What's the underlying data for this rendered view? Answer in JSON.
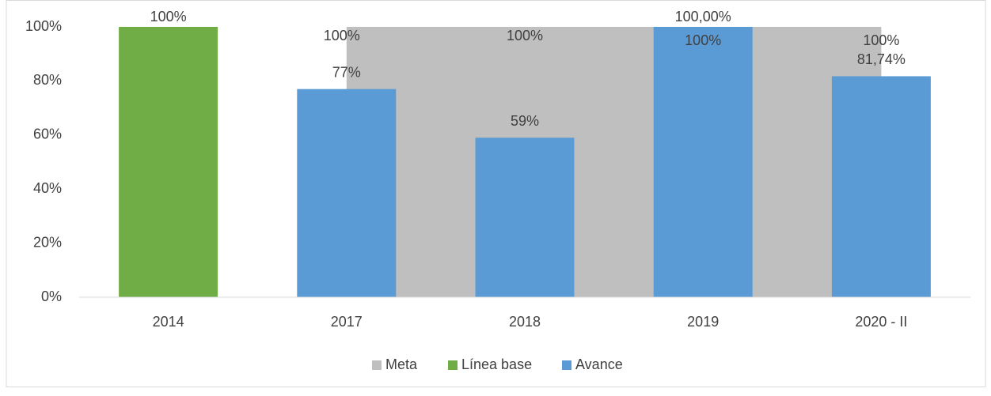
{
  "chart_data": {
    "type": "bar",
    "categories": [
      "2014",
      "2017",
      "2018",
      "2019",
      "2020 - II"
    ],
    "series": [
      {
        "name": "Meta",
        "type": "area",
        "color": "#bfbfbf",
        "values": [
          null,
          100,
          100,
          100,
          100
        ],
        "value_labels": [
          null,
          "100%",
          "100%",
          "100%",
          "100%"
        ]
      },
      {
        "name": "Línea base",
        "color": "#70ad47",
        "values": [
          100,
          null,
          null,
          null,
          null
        ],
        "value_labels": [
          "100%",
          null,
          null,
          null,
          null
        ]
      },
      {
        "name": "Avance",
        "color": "#5b9bd5",
        "values": [
          null,
          77,
          59,
          100,
          81.74
        ],
        "value_labels": [
          null,
          "77%",
          "59%",
          "100,00%",
          "81,74%"
        ]
      }
    ],
    "ylim": [
      0,
      100
    ],
    "yticks": [
      {
        "value": 0,
        "label": "0%"
      },
      {
        "value": 20,
        "label": "20%"
      },
      {
        "value": 40,
        "label": "40%"
      },
      {
        "value": 60,
        "label": "60%"
      },
      {
        "value": 80,
        "label": "80%"
      },
      {
        "value": 100,
        "label": "100%"
      }
    ],
    "legend": "bottom"
  }
}
